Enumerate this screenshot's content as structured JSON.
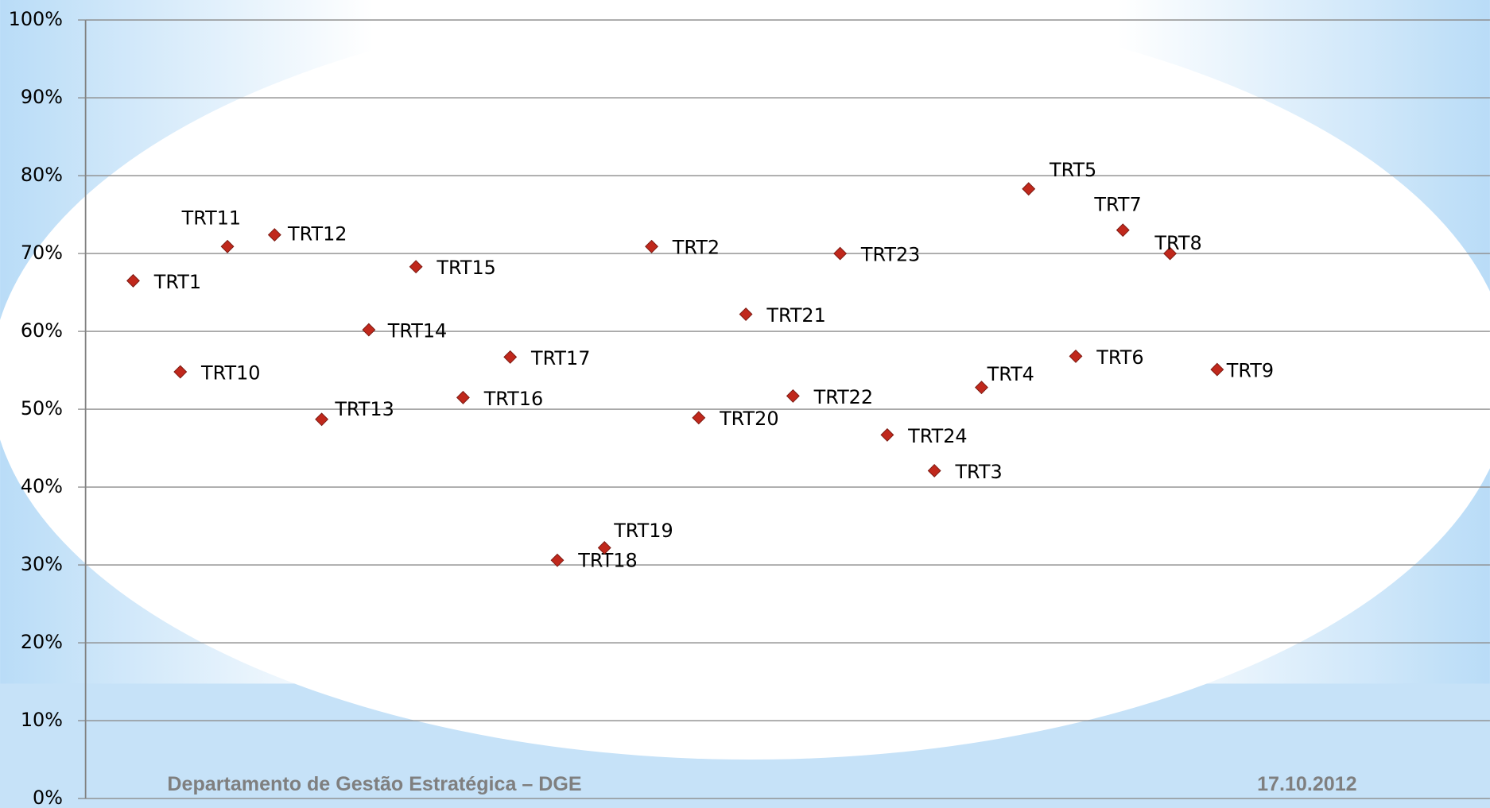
{
  "chart_data": {
    "type": "scatter",
    "categories": [
      "TRT1",
      "TRT10",
      "TRT11",
      "TRT12",
      "TRT13",
      "TRT14",
      "TRT15",
      "TRT16",
      "TRT17",
      "TRT18",
      "TRT19",
      "TRT2",
      "TRT20",
      "TRT21",
      "TRT22",
      "TRT23",
      "TRT24",
      "TRT3",
      "TRT4",
      "TRT5",
      "TRT6",
      "TRT7",
      "TRT8",
      "TRT9"
    ],
    "values": [
      66.5,
      54.8,
      70.9,
      72.4,
      48.7,
      60.2,
      68.3,
      51.5,
      56.7,
      30.6,
      32.2,
      70.9,
      48.9,
      62.2,
      51.7,
      70.0,
      46.7,
      42.1,
      52.8,
      78.3,
      56.8,
      73.0,
      70.0,
      55.1
    ],
    "color": "#c0281c",
    "ylim": [
      0,
      100
    ],
    "yticks": [
      {
        "value": 0,
        "label": "0%"
      },
      {
        "value": 10,
        "label": "10%"
      },
      {
        "value": 20,
        "label": "20%"
      },
      {
        "value": 30,
        "label": "30%"
      },
      {
        "value": 40,
        "label": "40%"
      },
      {
        "value": 50,
        "label": "50%"
      },
      {
        "value": 60,
        "label": "60%"
      },
      {
        "value": 70,
        "label": "70%"
      },
      {
        "value": 80,
        "label": "80%"
      },
      {
        "value": 90,
        "label": "90%"
      },
      {
        "value": 100,
        "label": "100%"
      }
    ],
    "grid": true
  },
  "footer": {
    "left": "Departamento de Gestão Estratégica – DGE",
    "right": "17.10.2012"
  }
}
